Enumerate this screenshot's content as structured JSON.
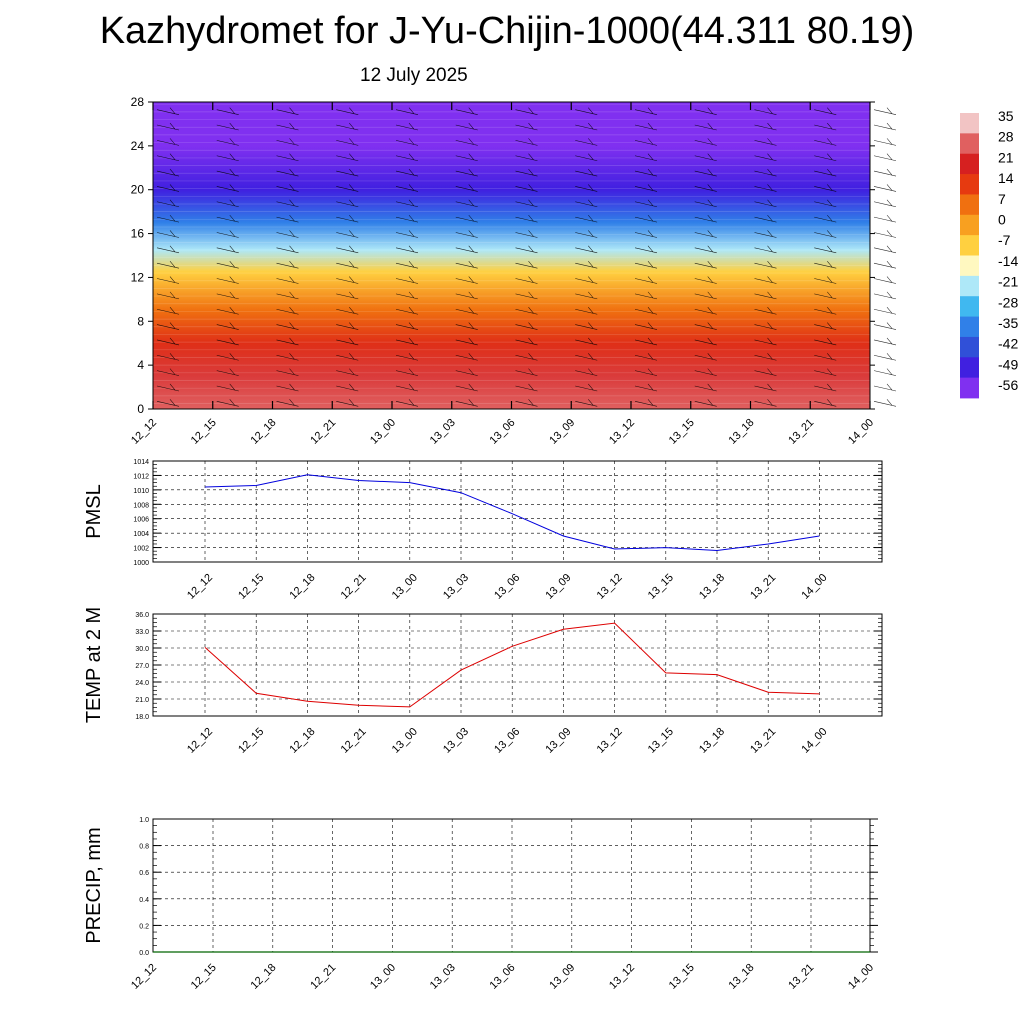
{
  "title": "Kazhydromet for J-Yu-Chijin-1000(44.311 80.19)",
  "subtitle": "12 July 2025",
  "chart_data": [
    {
      "type": "heatmap",
      "title": "",
      "x_ticks": [
        "12_12",
        "12_15",
        "12_18",
        "12_21",
        "13_00",
        "13_03",
        "13_06",
        "13_09",
        "13_12",
        "13_15",
        "13_18",
        "13_21",
        "14_00"
      ],
      "y_ticks": [
        0,
        4,
        8,
        12,
        16,
        20,
        24,
        28
      ],
      "ylim": [
        0,
        28
      ],
      "temperature_profile": [
        {
          "y": 0,
          "value": 28
        },
        {
          "y": 3,
          "value": 24
        },
        {
          "y": 6,
          "value": 17
        },
        {
          "y": 9,
          "value": 7
        },
        {
          "y": 12.5,
          "value": -7
        },
        {
          "y": 14.5,
          "value": -21
        },
        {
          "y": 17,
          "value": -35
        },
        {
          "y": 20,
          "value": -49
        },
        {
          "y": 24,
          "value": -56
        },
        {
          "y": 28,
          "value": -56
        }
      ],
      "colorbar": {
        "labels": [
          "35",
          "28",
          "21",
          "14",
          "7",
          "0",
          "-7",
          "-14",
          "-21",
          "-28",
          "-35",
          "-42",
          "-49",
          "-56"
        ],
        "colors": [
          "#f2c4c4",
          "#e06060",
          "#d62020",
          "#e63a10",
          "#f07010",
          "#f8a020",
          "#ffd040",
          "#fff8c0",
          "#aee8f8",
          "#40b8f0",
          "#3080e8",
          "#3050d8",
          "#4020e0",
          "#8030f0"
        ]
      },
      "grid": false
    },
    {
      "type": "line",
      "ylabel": "PMSL",
      "x": [
        "12_12",
        "12_15",
        "12_18",
        "12_21",
        "13_00",
        "13_03",
        "13_06",
        "13_09",
        "13_12",
        "13_15",
        "13_18",
        "13_21",
        "14_00"
      ],
      "series": [
        {
          "values": [
            1010.4,
            1010.6,
            1012.1,
            1011.3,
            1011.0,
            1009.6,
            1006.7,
            1003.6,
            1001.8,
            1002.0,
            1001.6,
            1002.5,
            1003.6
          ],
          "color": "#0000dd"
        }
      ],
      "ylim": [
        1000,
        1014
      ],
      "y_ticks": [
        1000,
        1002,
        1004,
        1006,
        1008,
        1010,
        1012,
        1014
      ],
      "grid": true
    },
    {
      "type": "line",
      "ylabel": "TEMP at 2 M",
      "x": [
        "12_12",
        "12_15",
        "12_18",
        "12_21",
        "13_00",
        "13_03",
        "13_06",
        "13_09",
        "13_12",
        "13_15",
        "13_18",
        "13_21",
        "14_00"
      ],
      "series": [
        {
          "values": [
            30.1,
            22.0,
            20.6,
            19.9,
            19.6,
            26.1,
            30.3,
            33.3,
            34.4,
            25.6,
            25.3,
            22.2,
            21.9
          ],
          "color": "#dd0000"
        }
      ],
      "ylim": [
        18,
        36
      ],
      "y_ticks": [
        "18.0",
        "21.0",
        "24.0",
        "27.0",
        "30.0",
        "33.0",
        "36.0"
      ],
      "grid": true
    },
    {
      "type": "line",
      "ylabel": "PRECIP, mm",
      "x": [
        "12_12",
        "12_15",
        "12_18",
        "12_21",
        "13_00",
        "13_03",
        "13_06",
        "13_09",
        "13_12",
        "13_15",
        "13_18",
        "13_21",
        "14_00"
      ],
      "series": [
        {
          "values": [
            0,
            0,
            0,
            0,
            0,
            0,
            0,
            0,
            0,
            0,
            0,
            0,
            0
          ],
          "color": "#006400"
        }
      ],
      "ylim": [
        0,
        1
      ],
      "y_ticks": [
        "0.0",
        "0.2",
        "0.4",
        "0.6",
        "0.8",
        "1.0"
      ],
      "grid": true
    }
  ]
}
